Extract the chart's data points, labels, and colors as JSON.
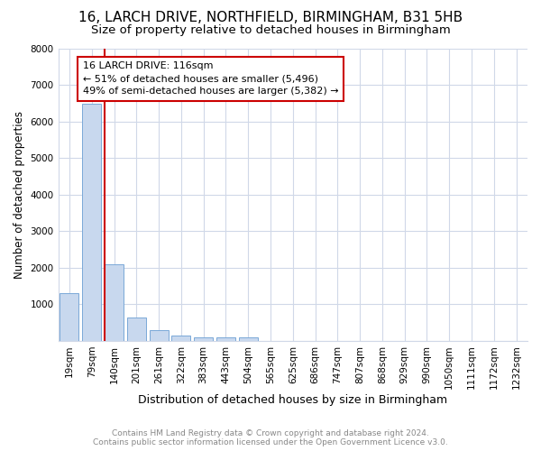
{
  "title1": "16, LARCH DRIVE, NORTHFIELD, BIRMINGHAM, B31 5HB",
  "title2": "Size of property relative to detached houses in Birmingham",
  "xlabel": "Distribution of detached houses by size in Birmingham",
  "ylabel": "Number of detached properties",
  "bar_labels": [
    "19sqm",
    "79sqm",
    "140sqm",
    "201sqm",
    "261sqm",
    "322sqm",
    "383sqm",
    "443sqm",
    "504sqm",
    "565sqm",
    "625sqm",
    "686sqm",
    "747sqm",
    "807sqm",
    "868sqm",
    "929sqm",
    "990sqm",
    "1050sqm",
    "1111sqm",
    "1172sqm",
    "1232sqm"
  ],
  "bar_values": [
    1300,
    6500,
    2100,
    650,
    300,
    150,
    100,
    100,
    100,
    0,
    0,
    0,
    0,
    0,
    0,
    0,
    0,
    0,
    0,
    0,
    0
  ],
  "bar_color": "#c8d8ee",
  "bar_edge_color": "#7aa8d8",
  "red_line_index": 2,
  "annotation_line1": "16 LARCH DRIVE: 116sqm",
  "annotation_line2": "← 51% of detached houses are smaller (5,496)",
  "annotation_line3": "49% of semi-detached houses are larger (5,382) →",
  "annotation_box_color": "#cc0000",
  "footer1": "Contains HM Land Registry data © Crown copyright and database right 2024.",
  "footer2": "Contains public sector information licensed under the Open Government Licence v3.0.",
  "ylim": [
    0,
    8000
  ],
  "yticks": [
    0,
    1000,
    2000,
    3000,
    4000,
    5000,
    6000,
    7000,
    8000
  ],
  "bg_color": "#ffffff",
  "plot_bg_color": "#ffffff",
  "grid_color": "#d0d8e8",
  "title1_fontsize": 11,
  "title2_fontsize": 9.5,
  "tick_fontsize": 7.5,
  "ylabel_fontsize": 8.5,
  "xlabel_fontsize": 9,
  "footer_fontsize": 6.5,
  "annotation_fontsize": 8
}
